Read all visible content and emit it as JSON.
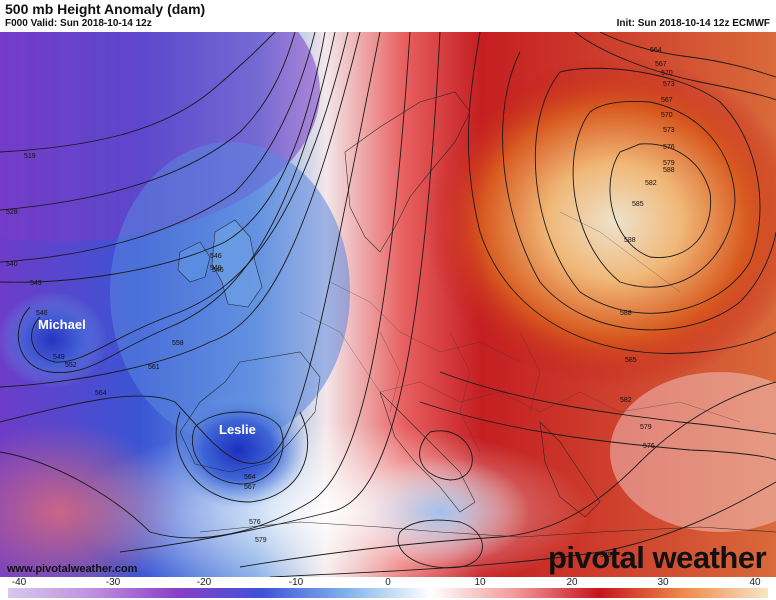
{
  "header": {
    "title": "500 mb Height Anomaly (dam)",
    "subtitle": "F000 Valid: Sun 2018-10-14 12z",
    "init": "Init: Sun 2018-10-14 12z ECMWF"
  },
  "map": {
    "storm_labels": [
      "Michael",
      "Leslie"
    ],
    "height_labels": [
      "519",
      "528",
      "540",
      "543",
      "546",
      "549",
      "552",
      "558",
      "561",
      "564",
      "567",
      "570",
      "573",
      "576",
      "579",
      "582",
      "585",
      "588",
      "546",
      "546",
      "549",
      "564",
      "567",
      "576",
      "579",
      "564",
      "561",
      "564",
      "567",
      "570",
      "573",
      "576",
      "579",
      "582",
      "588",
      "585",
      "582",
      "579",
      "576",
      "588",
      "579"
    ]
  },
  "footer": {
    "website": "www.pivotalweather.com",
    "brand": "pivotal weather"
  },
  "colorbar": {
    "ticks": [
      "-40",
      "-30",
      "-20",
      "-10",
      "0",
      "10",
      "20",
      "30",
      "40"
    ],
    "colors": [
      "#d8c8ee",
      "#c090e0",
      "#8a3fc8",
      "#3f52d8",
      "#7fb2ea",
      "#ffffff",
      "#f29a9a",
      "#c8141e",
      "#ef8a4a",
      "#f7e6c4"
    ]
  }
}
